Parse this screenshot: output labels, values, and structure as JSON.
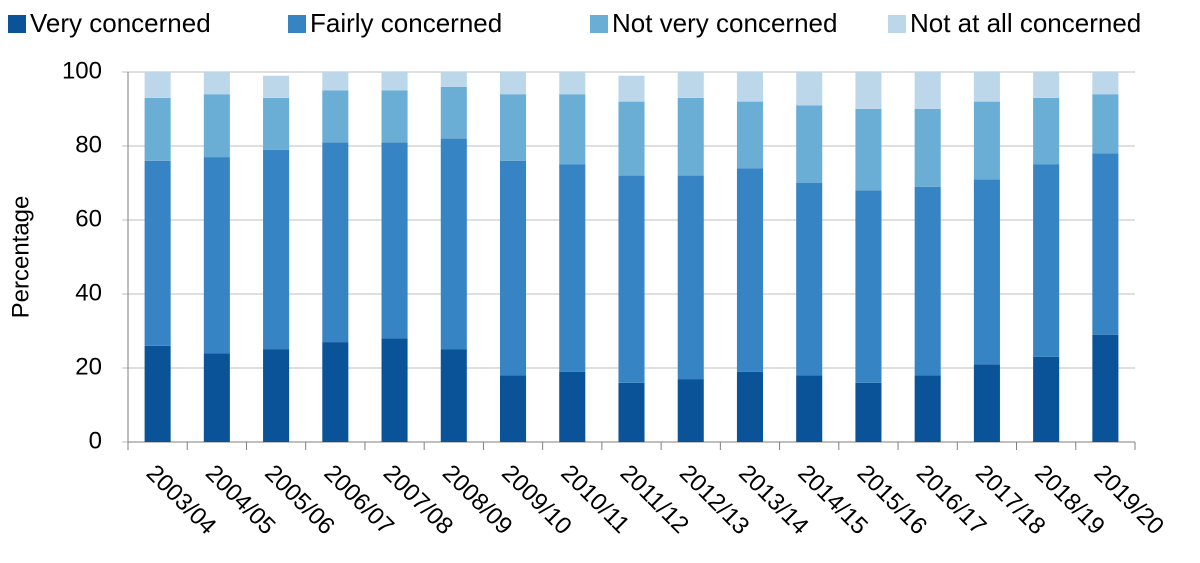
{
  "chart_data": {
    "type": "stacked-bar",
    "y_label": "Percentage",
    "categories": [
      "2003/04",
      "2004/05",
      "2005/06",
      "2006/07",
      "2007/08",
      "2008/09",
      "2009/10",
      "2010/11",
      "2011/12",
      "2012/13",
      "2013/14",
      "2014/15",
      "2015/16",
      "2016/17",
      "2017/18",
      "2018/19",
      "2019/20"
    ],
    "series": [
      {
        "name": "Very concerned",
        "color": "#0b5399",
        "values": [
          26,
          24,
          25,
          27,
          28,
          25,
          18,
          19,
          16,
          17,
          19,
          18,
          16,
          18,
          21,
          23,
          29
        ]
      },
      {
        "name": "Fairly concerned",
        "color": "#3784c4",
        "values": [
          50,
          53,
          54,
          54,
          53,
          57,
          58,
          56,
          56,
          55,
          55,
          52,
          52,
          51,
          50,
          52,
          49
        ]
      },
      {
        "name": "Not very concerned",
        "color": "#6aaed6",
        "values": [
          17,
          17,
          14,
          14,
          14,
          14,
          18,
          19,
          20,
          21,
          18,
          21,
          22,
          21,
          21,
          18,
          16
        ]
      },
      {
        "name": "Not at all concerned",
        "color": "#bdd7ea",
        "values": [
          7,
          6,
          6,
          5,
          5,
          4,
          6,
          6,
          7,
          7,
          8,
          9,
          10,
          10,
          8,
          7,
          6
        ]
      }
    ],
    "ylim": [
      0,
      100
    ],
    "yticks": [
      0,
      20,
      40,
      60,
      80,
      100
    ],
    "grid": true,
    "legend": "top"
  }
}
